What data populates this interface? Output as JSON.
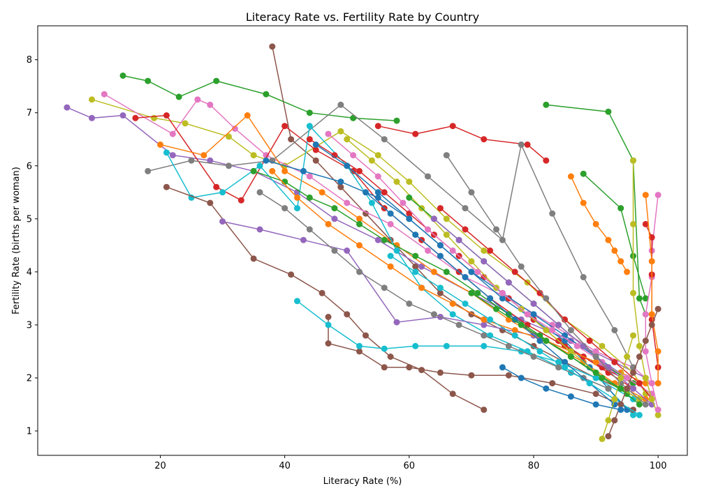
{
  "chart_data": {
    "type": "line",
    "title": "Literacy Rate vs. Fertility Rate by Country",
    "xlabel": "Literacy Rate (%)",
    "ylabel": "Fertility Rate (births per woman)",
    "xlim": [
      0.3,
      104.7
    ],
    "ylim": [
      0.54,
      8.64
    ],
    "xticks": [
      20,
      40,
      60,
      80,
      100
    ],
    "yticks": [
      1,
      2,
      3,
      4,
      5,
      6,
      7,
      8
    ],
    "grid": false,
    "legend": "none",
    "marker": "circle",
    "colors": [
      "#1f77b4",
      "#ff7f0e",
      "#2ca02c",
      "#d62728",
      "#9467bd",
      "#8c564b",
      "#e377c2",
      "#7f7f7f",
      "#bcbd22",
      "#17becf"
    ],
    "series": [
      {
        "color": "#8c564b",
        "x": [
          38,
          41,
          45,
          49,
          53,
          57,
          61,
          65,
          70,
          75,
          80,
          85,
          90,
          94,
          97
        ],
        "y": [
          8.25,
          6.5,
          6.1,
          5.6,
          5.1,
          4.6,
          4.1,
          3.6,
          3.2,
          2.9,
          2.6,
          2.3,
          2.0,
          1.8,
          1.6
        ]
      },
      {
        "color": "#2ca02c",
        "x": [
          14,
          18,
          23,
          29,
          37,
          44,
          51,
          58
        ],
        "y": [
          7.7,
          7.6,
          7.3,
          7.6,
          7.35,
          7.0,
          6.9,
          6.85
        ]
      },
      {
        "color": "#2ca02c",
        "x": [
          82,
          92,
          96,
          97,
          98
        ],
        "y": [
          7.15,
          7.02,
          6.1,
          3.5,
          3.2
        ]
      },
      {
        "color": "#9467bd",
        "x": [
          5,
          9,
          14,
          22,
          28,
          35,
          42,
          48,
          55,
          62,
          70,
          78,
          86,
          93,
          98
        ],
        "y": [
          7.1,
          6.9,
          6.95,
          6.2,
          6.1,
          5.9,
          5.5,
          5.0,
          4.6,
          4.1,
          3.6,
          3.1,
          2.7,
          2.3,
          2.0
        ]
      },
      {
        "color": "#bcbd22",
        "x": [
          9,
          19,
          24,
          31,
          35,
          40,
          49,
          55,
          60,
          66,
          72,
          79,
          85,
          91,
          96,
          98
        ],
        "y": [
          7.25,
          6.9,
          6.8,
          6.55,
          6.2,
          6.0,
          6.65,
          6.2,
          5.7,
          5.0,
          4.4,
          3.8,
          3.1,
          2.6,
          2.1,
          1.7
        ]
      },
      {
        "color": "#e377c2",
        "x": [
          11,
          22,
          26,
          28,
          32,
          37,
          44,
          50,
          57,
          63,
          69,
          76,
          83,
          90,
          96,
          99
        ],
        "y": [
          7.35,
          6.6,
          7.25,
          7.15,
          6.7,
          6.2,
          5.8,
          5.3,
          4.9,
          4.4,
          3.9,
          3.5,
          3.0,
          2.5,
          2.2,
          1.9
        ]
      },
      {
        "color": "#d62728",
        "x": [
          16,
          21,
          29,
          33,
          40,
          45,
          51,
          56,
          62,
          68,
          73,
          79,
          85,
          91,
          96
        ],
        "y": [
          6.9,
          6.95,
          5.6,
          5.35,
          6.75,
          6.3,
          5.9,
          5.2,
          4.6,
          4.0,
          3.5,
          3.0,
          2.6,
          2.2,
          1.9
        ]
      },
      {
        "color": "#d62728",
        "x": [
          55,
          61,
          67,
          72,
          79,
          82
        ],
        "y": [
          6.75,
          6.6,
          6.75,
          6.5,
          6.4,
          6.1
        ]
      },
      {
        "color": "#ff7f0e",
        "x": [
          20,
          27,
          34,
          40,
          46,
          52,
          58,
          64,
          70,
          76,
          82,
          88,
          93,
          98
        ],
        "y": [
          6.4,
          6.2,
          6.95,
          5.9,
          5.5,
          5.0,
          4.5,
          4.0,
          3.6,
          3.1,
          2.7,
          2.3,
          1.9,
          1.6
        ]
      },
      {
        "color": "#7f7f7f",
        "x": [
          18,
          25,
          31,
          38,
          49,
          56,
          63,
          69,
          75,
          78,
          83,
          88,
          93,
          96
        ],
        "y": [
          5.9,
          6.1,
          6.0,
          6.1,
          7.15,
          6.5,
          5.8,
          5.2,
          4.6,
          6.4,
          5.1,
          3.9,
          2.9,
          2.2
        ]
      },
      {
        "color": "#17becf",
        "x": [
          21,
          25,
          30,
          36,
          42,
          44,
          50,
          54,
          58,
          62,
          67,
          73,
          79,
          86,
          92,
          96
        ],
        "y": [
          6.25,
          5.4,
          5.5,
          6.0,
          5.2,
          6.75,
          6.0,
          5.3,
          4.4,
          3.7,
          3.2,
          2.8,
          2.5,
          2.1,
          1.8,
          1.3
        ]
      },
      {
        "color": "#1f77b4",
        "x": [
          37,
          43,
          49,
          55,
          60,
          65,
          70,
          75,
          80,
          85,
          89,
          92,
          95
        ],
        "y": [
          6.1,
          5.9,
          5.7,
          5.4,
          5.0,
          4.5,
          4.0,
          3.5,
          3.1,
          2.7,
          2.2,
          1.8,
          1.4
        ]
      },
      {
        "color": "#8c564b",
        "x": [
          21,
          28,
          35,
          41,
          46,
          50,
          53,
          57,
          62,
          67,
          72
        ],
        "y": [
          5.6,
          5.3,
          4.25,
          3.95,
          3.6,
          3.2,
          2.8,
          2.4,
          2.15,
          1.7,
          1.4
        ]
      },
      {
        "color": "#8c564b",
        "x": [
          47,
          47,
          52,
          56,
          60,
          65,
          70,
          76,
          83,
          90,
          96
        ],
        "y": [
          3.15,
          2.65,
          2.5,
          2.2,
          2.2,
          2.1,
          2.05,
          2.05,
          1.9,
          1.7,
          1.4
        ]
      },
      {
        "color": "#17becf",
        "x": [
          42,
          47,
          52,
          56,
          61,
          66,
          72,
          78,
          84,
          90,
          96
        ],
        "y": [
          3.45,
          3.0,
          2.6,
          2.55,
          2.6,
          2.6,
          2.6,
          2.5,
          2.3,
          2.0,
          1.6
        ]
      },
      {
        "color": "#2ca02c",
        "x": [
          35,
          40,
          44,
          48,
          52,
          56,
          61,
          66,
          71,
          76,
          81,
          86,
          91,
          95
        ],
        "y": [
          5.9,
          5.7,
          5.4,
          5.2,
          4.9,
          4.6,
          4.3,
          4.0,
          3.6,
          3.2,
          2.8,
          2.4,
          2.0,
          1.7
        ]
      },
      {
        "color": "#9467bd",
        "x": [
          30,
          36,
          43,
          50,
          58,
          65,
          72,
          80,
          88,
          95
        ],
        "y": [
          4.95,
          4.8,
          4.6,
          4.4,
          3.05,
          3.15,
          3.0,
          2.8,
          2.4,
          2.0
        ]
      },
      {
        "color": "#7f7f7f",
        "x": [
          36,
          40,
          44,
          48,
          52,
          56,
          60,
          64,
          68,
          72,
          76,
          80,
          84,
          88,
          92
        ],
        "y": [
          5.5,
          5.2,
          4.8,
          4.4,
          4.0,
          3.7,
          3.4,
          3.2,
          3.0,
          2.8,
          2.6,
          2.4,
          2.2,
          2.0,
          1.8
        ]
      },
      {
        "color": "#d62728",
        "x": [
          44,
          48,
          52,
          56,
          60,
          64,
          68,
          72,
          76,
          80,
          84,
          88,
          92,
          96
        ],
        "y": [
          6.5,
          6.2,
          5.9,
          5.5,
          5.1,
          4.7,
          4.3,
          3.9,
          3.5,
          3.1,
          2.7,
          2.4,
          2.1,
          1.8
        ]
      },
      {
        "color": "#ff7f0e",
        "x": [
          38,
          42,
          47,
          52,
          57,
          62,
          67,
          72,
          77,
          82,
          86,
          90,
          94,
          98
        ],
        "y": [
          5.9,
          5.4,
          4.9,
          4.5,
          4.1,
          3.7,
          3.4,
          3.1,
          2.9,
          2.7,
          2.5,
          2.3,
          2.1,
          1.9
        ]
      },
      {
        "color": "#1f77b4",
        "x": [
          45,
          50,
          55,
          60,
          65,
          70,
          75,
          80,
          85,
          90,
          95
        ],
        "y": [
          6.4,
          6.0,
          5.5,
          5.0,
          4.5,
          4.0,
          3.6,
          3.2,
          2.8,
          2.4,
          2.0
        ]
      },
      {
        "color": "#bcbd22",
        "x": [
          50,
          54,
          58,
          62,
          66,
          70,
          74,
          78,
          82,
          86,
          90,
          94,
          97
        ],
        "y": [
          6.5,
          6.1,
          5.7,
          5.2,
          4.7,
          4.2,
          3.7,
          3.3,
          2.9,
          2.5,
          2.1,
          1.8,
          1.6
        ]
      },
      {
        "color": "#2ca02c",
        "x": [
          60,
          64,
          68,
          72,
          76,
          80,
          84,
          88,
          92,
          96
        ],
        "y": [
          5.4,
          5.0,
          4.6,
          4.2,
          3.8,
          3.4,
          3.0,
          2.6,
          2.2,
          1.9
        ]
      },
      {
        "color": "#e377c2",
        "x": [
          47,
          51,
          55,
          59,
          63,
          67,
          71,
          75,
          79,
          83,
          87,
          91,
          95,
          99
        ],
        "y": [
          6.6,
          6.2,
          5.8,
          5.3,
          4.8,
          4.4,
          4.0,
          3.6,
          3.2,
          2.9,
          2.6,
          2.3,
          2.0,
          1.7
        ]
      },
      {
        "color": "#1f77b4",
        "x": [
          53,
          57,
          61,
          65,
          69,
          73,
          77,
          81,
          85,
          89,
          93
        ],
        "y": [
          5.5,
          5.1,
          4.7,
          4.3,
          3.9,
          3.5,
          3.1,
          2.7,
          2.3,
          1.9,
          1.5
        ]
      },
      {
        "color": "#d62728",
        "x": [
          65,
          69,
          73,
          77,
          81,
          85,
          89,
          93,
          97,
          99
        ],
        "y": [
          5.2,
          4.8,
          4.4,
          4.0,
          3.6,
          3.1,
          2.7,
          2.3,
          1.9,
          1.6
        ]
      },
      {
        "color": "#17becf",
        "x": [
          57,
          61,
          65,
          69,
          73,
          77,
          81,
          85,
          89,
          93,
          97
        ],
        "y": [
          4.3,
          4.0,
          3.7,
          3.4,
          3.1,
          2.8,
          2.5,
          2.2,
          1.9,
          1.6,
          1.3
        ]
      },
      {
        "color": "#ff7f0e",
        "x": [
          86,
          88,
          90,
          92,
          93,
          94,
          95
        ],
        "y": [
          5.8,
          5.3,
          4.9,
          4.6,
          4.4,
          4.2,
          4.0
        ]
      },
      {
        "color": "#9467bd",
        "x": [
          64,
          68,
          72,
          76,
          80,
          84,
          88,
          92,
          96,
          99
        ],
        "y": [
          5.0,
          4.6,
          4.2,
          3.8,
          3.4,
          3.0,
          2.6,
          2.2,
          1.8,
          1.5
        ]
      },
      {
        "color": "#7f7f7f",
        "x": [
          66,
          70,
          74,
          78,
          82,
          86,
          90,
          94,
          98
        ],
        "y": [
          6.2,
          5.5,
          4.8,
          4.1,
          3.5,
          2.9,
          2.4,
          1.9,
          1.5
        ]
      },
      {
        "color": "#2ca02c",
        "x": [
          88,
          94,
          96,
          98
        ],
        "y": [
          5.85,
          5.2,
          4.3,
          3.5
        ]
      },
      {
        "color": "#bcbd22",
        "x": [
          96,
          96,
          96,
          97,
          98,
          99,
          100
        ],
        "y": [
          6.1,
          4.9,
          3.6,
          2.6,
          2.0,
          1.6,
          1.3
        ]
      },
      {
        "color": "#e377c2",
        "x": [
          100,
          99,
          99,
          98,
          98,
          99,
          100
        ],
        "y": [
          5.45,
          4.4,
          3.9,
          3.2,
          2.5,
          1.9,
          1.4
        ]
      },
      {
        "color": "#d62728",
        "x": [
          98,
          99,
          99,
          99,
          100
        ],
        "y": [
          4.9,
          4.65,
          3.95,
          3.1,
          2.2
        ]
      },
      {
        "color": "#ff7f0e",
        "x": [
          98,
          99,
          99,
          100,
          100
        ],
        "y": [
          5.45,
          4.2,
          3.2,
          2.5,
          1.9
        ]
      },
      {
        "color": "#8c564b",
        "x": [
          92,
          93,
          94,
          95,
          96,
          97,
          98,
          99,
          100
        ],
        "y": [
          0.9,
          1.2,
          1.5,
          1.8,
          2.1,
          2.4,
          2.7,
          3.0,
          3.3
        ]
      },
      {
        "color": "#bcbd22",
        "x": [
          91,
          92,
          93,
          94,
          95,
          96
        ],
        "y": [
          0.85,
          1.2,
          1.6,
          2.0,
          2.4,
          2.8
        ]
      },
      {
        "color": "#1f77b4",
        "x": [
          75,
          78,
          82,
          86,
          90,
          94
        ],
        "y": [
          2.2,
          2.0,
          1.8,
          1.65,
          1.5,
          1.4
        ]
      },
      {
        "color": "#2ca02c",
        "x": [
          70,
          74,
          78,
          82,
          86,
          90,
          94,
          97
        ],
        "y": [
          3.6,
          3.3,
          3.0,
          2.7,
          2.4,
          2.1,
          1.8,
          1.5
        ]
      }
    ]
  }
}
